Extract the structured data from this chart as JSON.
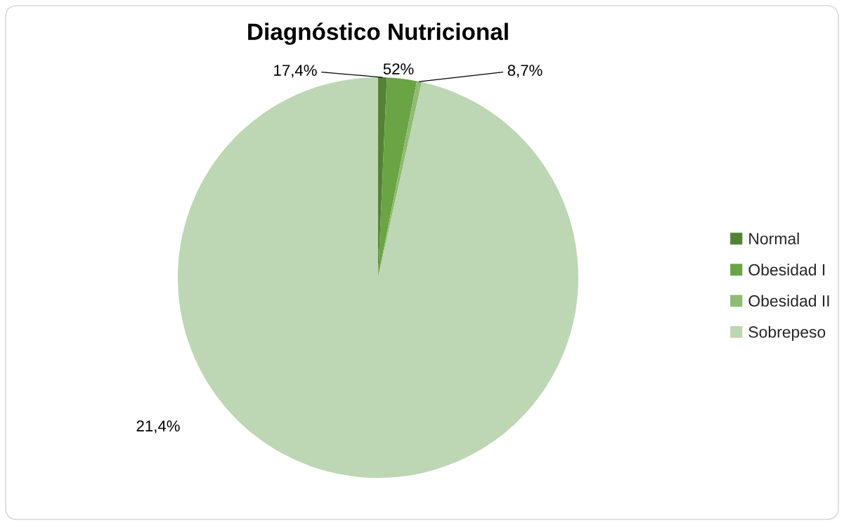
{
  "chart_data": {
    "type": "pie",
    "title": "Diagnóstico Nutricional",
    "categories": [
      "Normal",
      "Obesidad I",
      "Obesidad II",
      "Sobrepeso"
    ],
    "values": [
      0.7,
      2.4,
      0.4,
      96.5
    ],
    "colors": [
      "#548235",
      "#6aa444",
      "#8fbb72",
      "#bdd6b4"
    ],
    "annotations": [
      "17,4%",
      "52%",
      "8,7%",
      "21,4%"
    ],
    "legend": "right"
  }
}
